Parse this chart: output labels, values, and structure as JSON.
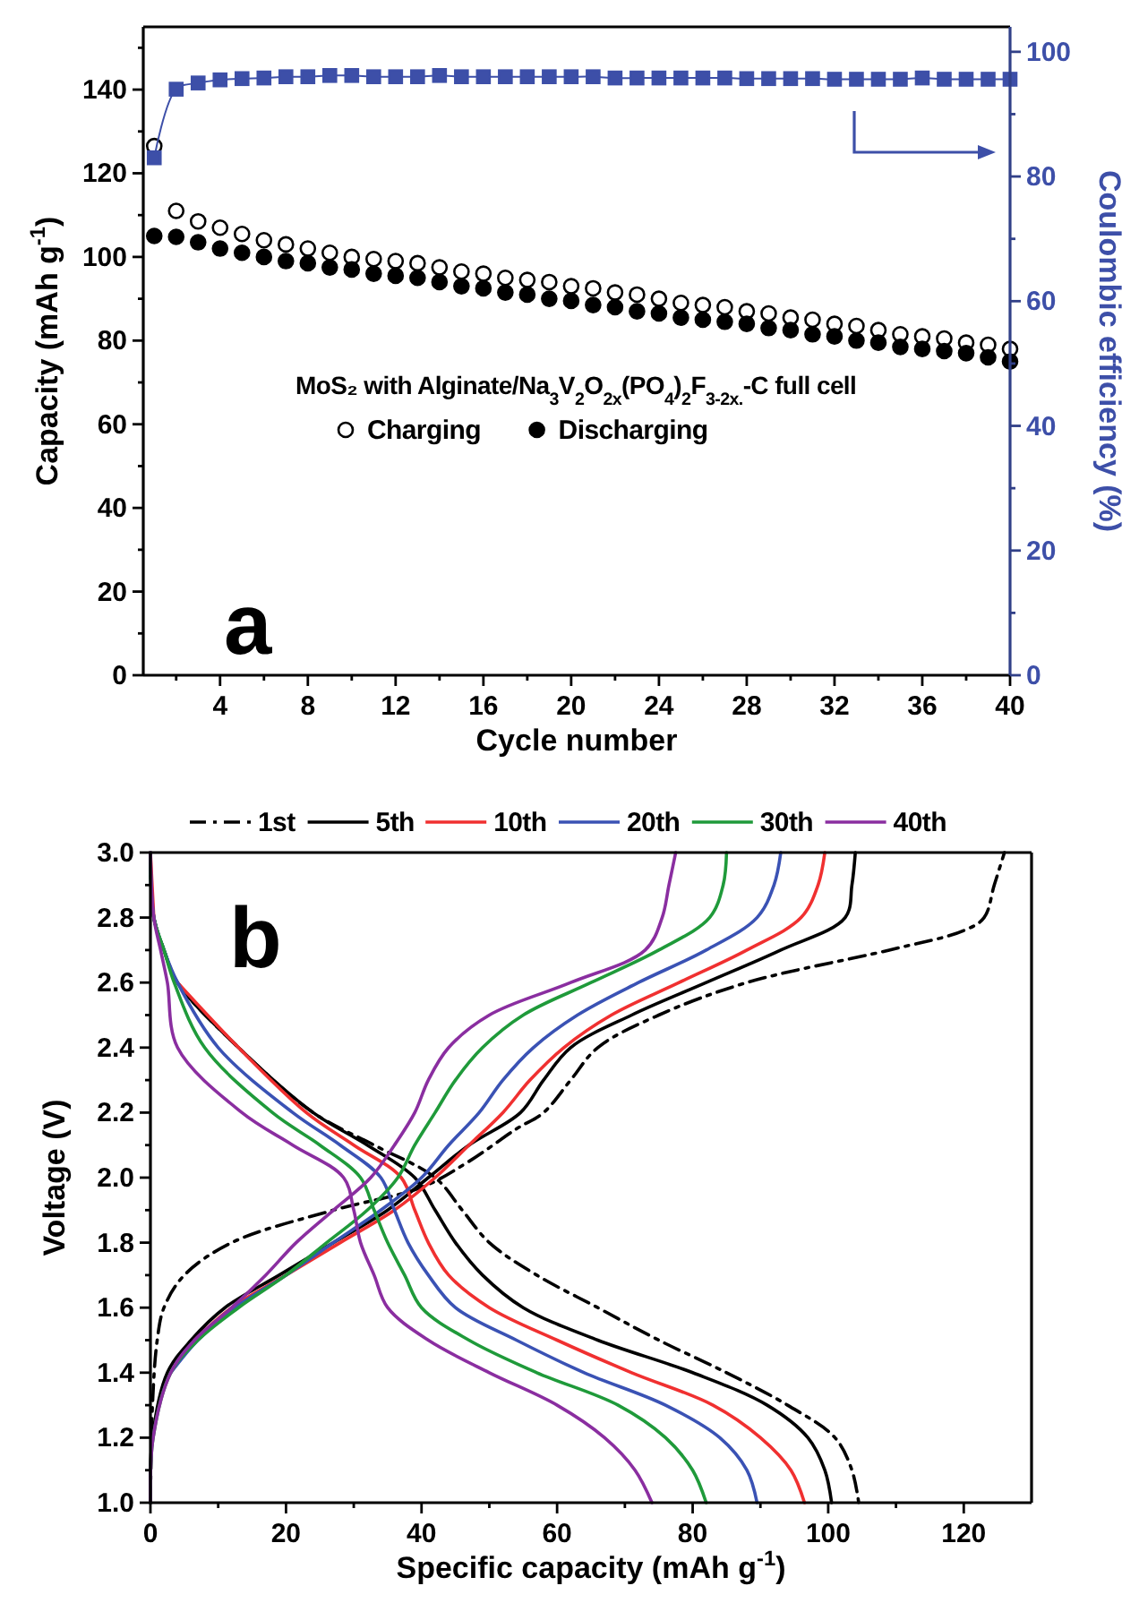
{
  "chart_data": [
    {
      "type": "scatter",
      "xlabel": "Cycle number",
      "ylabel": "Capacity (mAh g$^{-1}$)",
      "y2label": "Coulombic efficiency (%)",
      "legend_title": "MoS₂ with Alginate/Na$_{3}$V$_{2}$O$_{2x}$(PO$_{4}$)$_{2}$F$_{3-2x.}$-C full cell",
      "legend": "left",
      "grid": false,
      "annotations": [
        "a"
      ],
      "x": [
        1,
        2,
        3,
        4,
        5,
        6,
        7,
        8,
        9,
        10,
        11,
        12,
        13,
        14,
        15,
        16,
        17,
        18,
        19,
        20,
        21,
        22,
        23,
        24,
        25,
        26,
        27,
        28,
        29,
        30,
        31,
        32,
        33,
        34,
        35,
        36,
        37,
        38,
        39,
        40
      ],
      "xlim": [
        0.5,
        40
      ],
      "xticks": [
        {
          "value": 2,
          "label": null
        },
        4,
        {
          "value": 6,
          "label": null
        },
        8,
        {
          "value": 10,
          "label": null
        },
        12,
        {
          "value": 14,
          "label": null
        },
        16,
        {
          "value": 18,
          "label": null
        },
        20,
        {
          "value": 22,
          "label": null
        },
        24,
        {
          "value": 26,
          "label": null
        },
        28,
        {
          "value": 30,
          "label": null
        },
        32,
        {
          "value": 34,
          "label": null
        },
        36,
        {
          "value": 38,
          "label": null
        },
        40
      ],
      "ylim": [
        0,
        155
      ],
      "yticks": [
        0,
        {
          "value": 10,
          "label": null
        },
        20,
        {
          "value": 30,
          "label": null
        },
        40,
        {
          "value": 50,
          "label": null
        },
        60,
        {
          "value": 70,
          "label": null
        },
        80,
        {
          "value": 90,
          "label": null
        },
        100,
        {
          "value": 110,
          "label": null
        },
        120,
        {
          "value": 130,
          "label": null
        },
        140,
        {
          "value": 150,
          "label": null
        }
      ],
      "y2lim": [
        0,
        104
      ],
      "y2ticks": [
        0,
        {
          "value": 10,
          "label": null
        },
        20,
        {
          "value": 30,
          "label": null
        },
        40,
        {
          "value": 50,
          "label": null
        },
        60,
        {
          "value": 70,
          "label": null
        },
        80,
        {
          "value": 90,
          "label": null
        },
        100
      ],
      "series": [
        {
          "name": "Charging",
          "color": "#ffffff",
          "marker": "circle",
          "values": [
            126.5,
            111,
            108.5,
            107,
            105.5,
            104,
            103,
            102,
            101,
            100,
            99.5,
            99,
            98.5,
            97.5,
            96.5,
            96,
            95,
            94.5,
            94,
            93,
            92.5,
            91.5,
            91,
            90,
            89,
            88.5,
            88,
            87,
            86.5,
            85.5,
            85,
            84,
            83.5,
            82.5,
            81.5,
            81,
            80.5,
            79.5,
            79,
            78
          ]
        },
        {
          "name": "Discharging",
          "color": "#000000",
          "marker": "circle",
          "values": [
            105,
            104.8,
            103.5,
            102,
            101,
            100,
            99,
            98.5,
            97.5,
            97,
            96,
            95.5,
            95,
            94,
            93,
            92.5,
            91.5,
            91,
            90,
            89.5,
            88.5,
            88,
            87,
            86.5,
            85.5,
            85,
            84.5,
            84,
            83,
            82.5,
            81.5,
            81,
            80,
            79.5,
            78.5,
            78,
            77.5,
            77,
            76,
            75
          ]
        },
        {
          "type": "line",
          "axis": "y2",
          "color": "#3d4fa8",
          "marker": "square",
          "values": [
            83,
            94,
            95,
            95.5,
            95.7,
            95.8,
            96,
            96,
            96.2,
            96.2,
            96,
            96,
            96,
            96.2,
            96,
            96,
            96,
            96,
            96,
            96,
            96,
            95.8,
            95.8,
            95.8,
            95.8,
            95.8,
            95.8,
            95.7,
            95.7,
            95.7,
            95.7,
            95.6,
            95.6,
            95.6,
            95.6,
            95.8,
            95.6,
            95.6,
            95.6,
            95.6
          ]
        }
      ]
    },
    {
      "type": "line",
      "xlabel": "Specific capacity (mAh g$^{-1}$)",
      "ylabel": "Voltage (V)",
      "legend": "top",
      "grid": false,
      "annotations": [
        "b"
      ],
      "xlim": [
        0,
        130
      ],
      "xticks": [
        0,
        {
          "value": 10,
          "label": null
        },
        20,
        {
          "value": 30,
          "label": null
        },
        40,
        {
          "value": 50,
          "label": null
        },
        60,
        {
          "value": 70,
          "label": null
        },
        80,
        {
          "value": 90,
          "label": null
        },
        100,
        {
          "value": 110,
          "label": null
        },
        120
      ],
      "ylim": [
        1,
        3
      ],
      "yticks": [
        {
          "value": 1,
          "label": "1.0"
        },
        {
          "value": 1.1,
          "label": null
        },
        {
          "value": 1.2,
          "label": "1.2"
        },
        {
          "value": 1.3,
          "label": null
        },
        {
          "value": 1.4,
          "label": "1.4"
        },
        {
          "value": 1.5,
          "label": null
        },
        {
          "value": 1.6,
          "label": "1.6"
        },
        {
          "value": 1.7,
          "label": null
        },
        {
          "value": 1.8,
          "label": "1.8"
        },
        {
          "value": 1.9,
          "label": null
        },
        {
          "value": 2,
          "label": "2.0"
        },
        {
          "value": 2.1,
          "label": null
        },
        {
          "value": 2.2,
          "label": "2.2"
        },
        {
          "value": 2.3,
          "label": null
        },
        {
          "value": 2.4,
          "label": "2.4"
        },
        {
          "value": 2.5,
          "label": null
        },
        {
          "value": 2.6,
          "label": "2.6"
        },
        {
          "value": 2.7,
          "label": null
        },
        {
          "value": 2.8,
          "label": "2.8"
        },
        {
          "value": 2.9,
          "label": null
        },
        {
          "value": 3,
          "label": "3.0"
        }
      ],
      "series": [
        {
          "name": "1st",
          "color": "#000000",
          "line_style": "dashdot",
          "x": [
            0,
            0.3,
            1,
            2,
            5,
            12,
            27,
            40,
            47,
            54,
            58,
            62,
            66,
            75,
            88,
            109,
            120,
            123,
            124.5,
            126,
            null,
            0,
            0.5,
            2,
            4,
            13,
            24,
            33,
            42,
            46,
            50,
            57,
            66,
            75,
            85,
            94,
            101,
            103.5,
            104.5
          ],
          "values": [
            1.0,
            1.3,
            1.5,
            1.6,
            1.7,
            1.8,
            1.9,
            1.97,
            2.05,
            2.15,
            2.2,
            2.3,
            2.4,
            2.5,
            2.6,
            2.7,
            2.76,
            2.8,
            2.9,
            3.0,
            null,
            3.0,
            2.8,
            2.7,
            2.6,
            2.4,
            2.2,
            2.1,
            2.0,
            1.9,
            1.8,
            1.7,
            1.6,
            1.5,
            1.4,
            1.3,
            1.2,
            1.1,
            1.0
          ]
        },
        {
          "name": "5th",
          "color": "#000000",
          "x": [
            0,
            0.3,
            2.5,
            6,
            11,
            19,
            27,
            35,
            41,
            47,
            54.6,
            58,
            62,
            71,
            82,
            93,
            102.5,
            103.5,
            104,
            null,
            0,
            0.5,
            2,
            4,
            13,
            24,
            32,
            39,
            42,
            45,
            49,
            55,
            66,
            80,
            91,
            97,
            99.5,
            100.5
          ],
          "values": [
            1.0,
            1.2,
            1.4,
            1.5,
            1.6,
            1.7,
            1.8,
            1.9,
            2.0,
            2.1,
            2.2,
            2.3,
            2.4,
            2.5,
            2.6,
            2.7,
            2.8,
            2.9,
            3.0,
            null,
            3.0,
            2.8,
            2.7,
            2.6,
            2.4,
            2.2,
            2.1,
            2.0,
            1.9,
            1.8,
            1.7,
            1.6,
            1.5,
            1.4,
            1.3,
            1.2,
            1.1,
            1.0
          ]
        },
        {
          "name": "10th",
          "color": "#f03030",
          "x": [
            null,
            null,
            null,
            6.5,
            12,
            20,
            28,
            36,
            42,
            47,
            52,
            56,
            61,
            68,
            78,
            88,
            96,
            98.5,
            99.5,
            null,
            0,
            0.5,
            null,
            4,
            13,
            23,
            30,
            37,
            39,
            41,
            44,
            50,
            60,
            71,
            83,
            90,
            94.5,
            96.5
          ],
          "values": [
            null,
            null,
            null,
            1.5,
            1.6,
            1.7,
            1.8,
            1.9,
            2.0,
            2.1,
            2.2,
            2.3,
            2.4,
            2.5,
            2.6,
            2.7,
            2.8,
            2.9,
            3.0,
            null,
            3.0,
            2.8,
            null,
            2.6,
            2.4,
            2.2,
            2.1,
            2.0,
            1.9,
            1.8,
            1.7,
            1.6,
            1.5,
            1.4,
            1.3,
            1.2,
            1.1,
            1.0
          ]
        },
        {
          "name": "20th",
          "color": "#3a52b4",
          "x": [
            null,
            null,
            3,
            7,
            12.5,
            20,
            27,
            34,
            40,
            44,
            48.5,
            52,
            56.5,
            63,
            72,
            82,
            89.5,
            92,
            93,
            null,
            0,
            0.5,
            2,
            4,
            10,
            21,
            28,
            34,
            36,
            38,
            41,
            45,
            54,
            64,
            76,
            84,
            88,
            89.5
          ],
          "values": [
            null,
            null,
            1.4,
            1.5,
            1.6,
            1.7,
            1.8,
            1.9,
            2.0,
            2.1,
            2.2,
            2.3,
            2.4,
            2.5,
            2.6,
            2.7,
            2.8,
            2.9,
            3.0,
            null,
            3.0,
            2.8,
            2.7,
            2.6,
            2.4,
            2.2,
            2.1,
            2.0,
            1.9,
            1.8,
            1.7,
            1.6,
            1.5,
            1.4,
            1.3,
            1.2,
            1.1,
            1.0
          ]
        },
        {
          "name": "30th",
          "color": "#1f9a3a",
          "x": [
            0,
            0.4,
            3,
            7,
            13,
            20,
            26,
            32,
            36.5,
            39,
            42,
            45,
            49,
            55,
            65,
            75,
            82.5,
            84.5,
            85,
            null,
            0,
            0.5,
            2,
            3.5,
            8,
            18,
            25,
            31,
            33,
            35,
            37.5,
            40,
            47,
            57,
            69,
            76,
            80,
            82
          ],
          "values": [
            1.0,
            1.2,
            1.4,
            1.5,
            1.6,
            1.7,
            1.8,
            1.9,
            2.0,
            2.1,
            2.2,
            2.3,
            2.4,
            2.5,
            2.6,
            2.7,
            2.8,
            2.9,
            3.0,
            null,
            3.0,
            2.8,
            2.7,
            2.6,
            2.4,
            2.2,
            2.1,
            2.0,
            1.9,
            1.8,
            1.7,
            1.6,
            1.5,
            1.4,
            1.3,
            1.2,
            1.1,
            1.0
          ]
        },
        {
          "name": "40th",
          "color": "#8a2ea0",
          "x": [
            0,
            0.4,
            3,
            6.5,
            12,
            17,
            21.5,
            27,
            32.5,
            36,
            39,
            41,
            44,
            50,
            62,
            73,
            75.5,
            76.5,
            77.5,
            null,
            0,
            0.5,
            1.5,
            2.5,
            4,
            13.5,
            21,
            28.5,
            30,
            31,
            33,
            35,
            41,
            50,
            60,
            67,
            71.5,
            74
          ],
          "values": [
            1.0,
            1.2,
            1.4,
            1.5,
            1.6,
            1.7,
            1.8,
            1.9,
            2.0,
            2.1,
            2.2,
            2.3,
            2.4,
            2.5,
            2.6,
            2.7,
            2.8,
            2.9,
            3.0,
            null,
            3.0,
            2.8,
            2.7,
            2.6,
            2.4,
            2.2,
            2.1,
            2.0,
            1.9,
            1.8,
            1.7,
            1.6,
            1.5,
            1.4,
            1.3,
            1.2,
            1.1,
            1.0
          ]
        }
      ]
    }
  ]
}
